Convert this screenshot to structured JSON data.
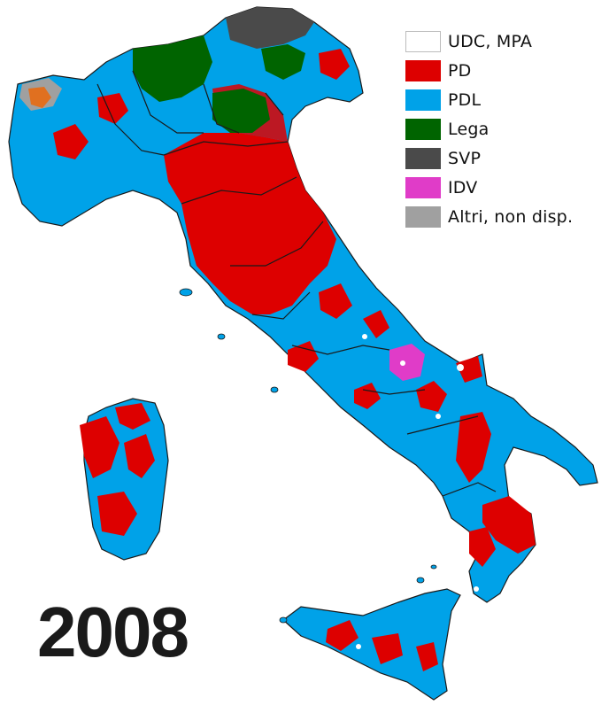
{
  "colors": {
    "udc_mpa": "#ffffff",
    "pd": "#dd0000",
    "pdl": "#00a2e8",
    "lega": "#006400",
    "svp": "#4a4a4a",
    "idv": "#e03cc8",
    "altri": "#a0a0a0",
    "border": "#1a1a1a"
  },
  "legend": [
    {
      "label": "UDC, MPA",
      "color": "#ffffff"
    },
    {
      "label": "PD",
      "color": "#dd0000"
    },
    {
      "label": "PDL",
      "color": "#00a2e8"
    },
    {
      "label": "Lega",
      "color": "#006400"
    },
    {
      "label": "SVP",
      "color": "#4a4a4a"
    },
    {
      "label": "IDV",
      "color": "#e03cc8"
    },
    {
      "label": "Altri, non disp.",
      "color": "#a0a0a0"
    }
  ],
  "year": "2008"
}
